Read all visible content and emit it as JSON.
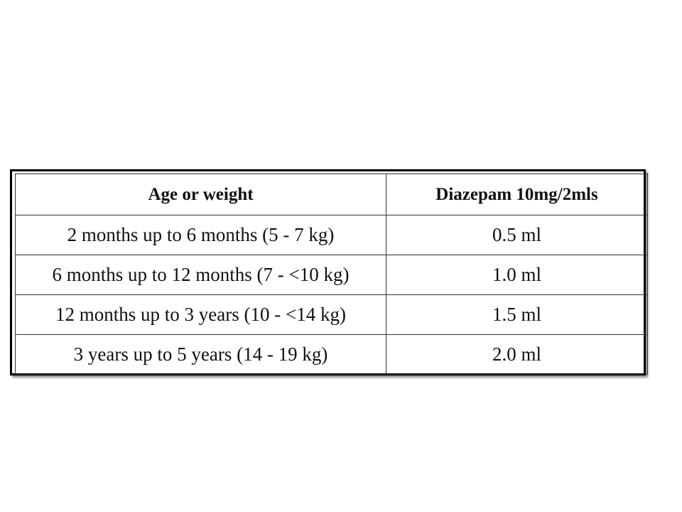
{
  "table": {
    "headers": [
      "Age or weight",
      "Diazepam 10mg/2mls"
    ],
    "rows": [
      [
        "2 months up to 6 months (5 - 7 kg)",
        "0.5 ml"
      ],
      [
        "6 months up to 12 months (7 - <10 kg)",
        "1.0 ml"
      ],
      [
        "12 months up to 3 years (10 - <14 kg)",
        "1.5 ml"
      ],
      [
        "3 years up to 5 years (14 - 19 kg)",
        "2.0 ml"
      ]
    ]
  }
}
